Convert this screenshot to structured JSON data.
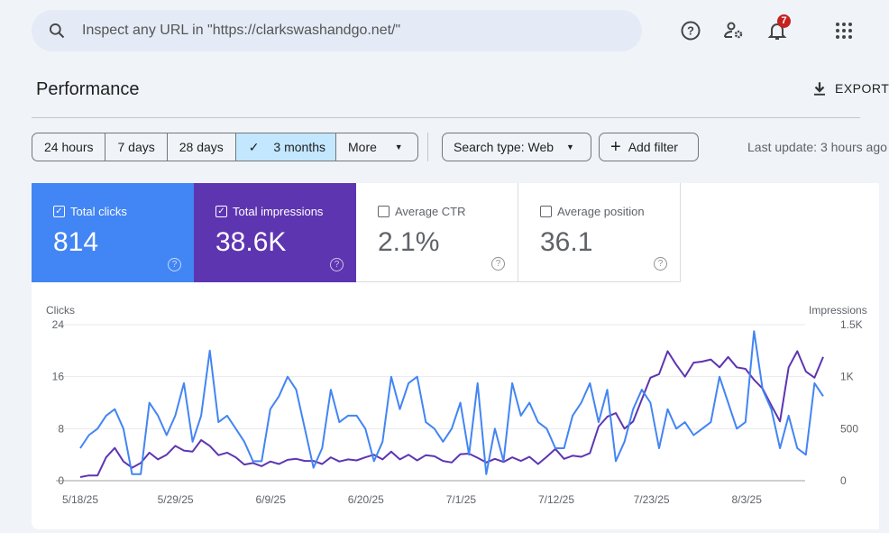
{
  "search": {
    "placeholder": "Inspect any URL in \"https://clarkswashandgo.net/\""
  },
  "header": {
    "notifications_count": "7",
    "icons": [
      "help-icon",
      "manage-users-icon",
      "bell-icon",
      "apps-icon"
    ]
  },
  "page": {
    "title": "Performance",
    "export_label": "EXPORT"
  },
  "date_ranges": [
    {
      "label": "24 hours"
    },
    {
      "label": "7 days"
    },
    {
      "label": "28 days"
    },
    {
      "label": "3 months",
      "selected": true
    },
    {
      "label": "More"
    }
  ],
  "filters": {
    "search_type": "Search type: Web",
    "add_filter": "Add filter",
    "last_update": "Last update: 3 hours ago"
  },
  "metrics": [
    {
      "label": "Total clicks",
      "value": "814",
      "checked": true,
      "color": "#4285f4"
    },
    {
      "label": "Total impressions",
      "value": "38.6K",
      "checked": true,
      "color": "#5e35b1"
    },
    {
      "label": "Average CTR",
      "value": "2.1%",
      "checked": false
    },
    {
      "label": "Average position",
      "value": "36.1",
      "checked": false
    }
  ],
  "chart_data": {
    "type": "line",
    "x_start": "5/18/25",
    "x_tick_labels": [
      "5/18/25",
      "5/29/25",
      "6/9/25",
      "6/20/25",
      "7/1/25",
      "7/12/25",
      "7/23/25",
      "8/3/25"
    ],
    "ylabel_left": "Clicks",
    "ylabel_right": "Impressions",
    "y_left": {
      "range": [
        0,
        24
      ],
      "ticks": [
        "0",
        "8",
        "16",
        "24"
      ]
    },
    "y_right": {
      "range": [
        0,
        1500
      ],
      "ticks": [
        "0",
        "500",
        "1K",
        "1.5K"
      ]
    },
    "grid": true,
    "series": [
      {
        "name": "Clicks",
        "axis": "left",
        "color": "#4285f4",
        "values": [
          5,
          7,
          8,
          10,
          11,
          8,
          1,
          1,
          12,
          10,
          7,
          10,
          15,
          6,
          10,
          20,
          9,
          10,
          8,
          6,
          3,
          3,
          11,
          13,
          16,
          14,
          8,
          2,
          5,
          14,
          9,
          10,
          10,
          8,
          3,
          6,
          16,
          11,
          15,
          16,
          9,
          8,
          6,
          8,
          12,
          4,
          15,
          1,
          8,
          3,
          15,
          10,
          12,
          9,
          8,
          5,
          5,
          10,
          12,
          15,
          9,
          14,
          3,
          6,
          11,
          14,
          12,
          5,
          11,
          8,
          9,
          7,
          8,
          9,
          16,
          12,
          8,
          9,
          23,
          14,
          11,
          5,
          10,
          5,
          4,
          15,
          13
        ]
      },
      {
        "name": "Impressions",
        "axis": "right",
        "color": "#5e35b1",
        "values": [
          35,
          50,
          50,
          225,
          315,
          185,
          125,
          170,
          270,
          205,
          250,
          335,
          290,
          280,
          390,
          335,
          245,
          270,
          225,
          155,
          170,
          140,
          185,
          160,
          200,
          210,
          190,
          190,
          160,
          225,
          185,
          205,
          195,
          225,
          250,
          205,
          280,
          205,
          250,
          195,
          245,
          235,
          190,
          175,
          255,
          260,
          220,
          175,
          210,
          180,
          225,
          190,
          230,
          160,
          230,
          305,
          210,
          240,
          230,
          265,
          520,
          615,
          650,
          500,
          570,
          780,
          990,
          1025,
          1245,
          1115,
          1000,
          1135,
          1145,
          1165,
          1090,
          1190,
          1090,
          1075,
          970,
          885,
          725,
          570,
          1090,
          1245,
          1050,
          990,
          1190
        ]
      }
    ]
  }
}
